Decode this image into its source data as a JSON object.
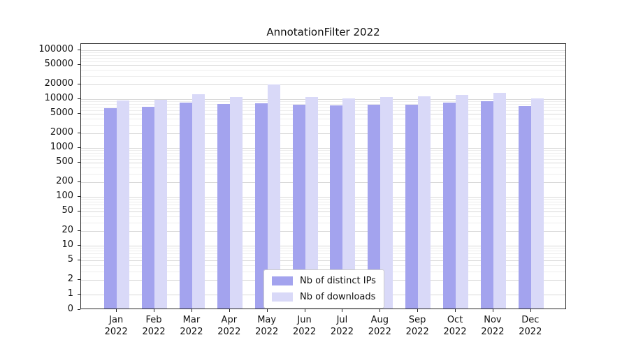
{
  "chart_data": {
    "type": "bar",
    "title": "AnnotationFilter 2022",
    "categories": [
      "Jan",
      "Feb",
      "Mar",
      "Apr",
      "May",
      "Jun",
      "Jul",
      "Aug",
      "Sep",
      "Oct",
      "Nov",
      "Dec"
    ],
    "category_sublabel": "2022",
    "series": [
      {
        "name": "Nb of distinct IPs",
        "color": "#a3a3ee",
        "values": [
          6500,
          7000,
          8600,
          8000,
          8200,
          7700,
          7500,
          7800,
          7700,
          8500,
          9000,
          7300
        ]
      },
      {
        "name": "Nb of downloads",
        "color": "#d9d9f8",
        "values": [
          9500,
          9800,
          12500,
          11000,
          20000,
          11200,
          10500,
          11000,
          11500,
          12000,
          13500,
          10500
        ]
      }
    ],
    "yscale": "symlog",
    "yticks": [
      0,
      1,
      2,
      5,
      10,
      20,
      50,
      100,
      200,
      500,
      1000,
      2000,
      5000,
      10000,
      20000,
      50000,
      100000
    ],
    "ylim": [
      0,
      134000
    ],
    "xlabel": "",
    "ylabel": "",
    "grid": true,
    "legend_position": "lower center"
  }
}
